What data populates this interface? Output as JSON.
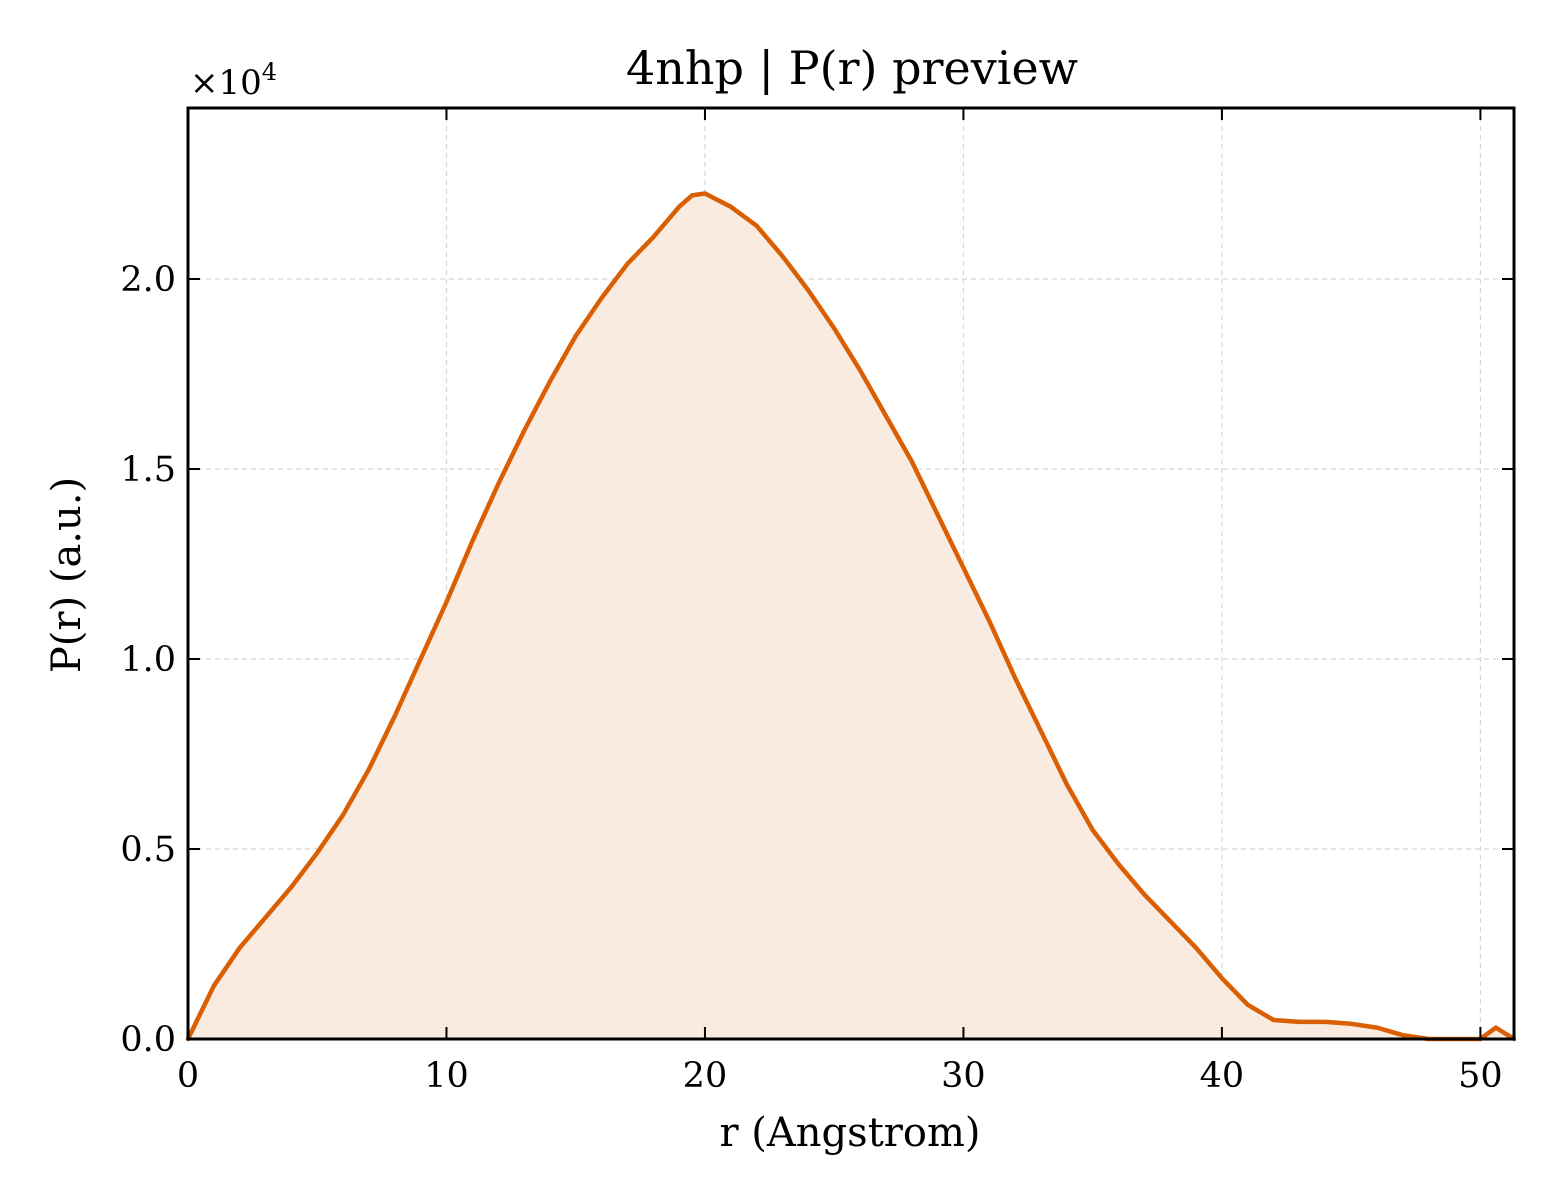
{
  "chart_data": {
    "type": "area",
    "title": "4nhp | P(r) preview",
    "xlabel": "r (Angstrom)",
    "ylabel": "P(r) (a.u.)",
    "y_multiplier_base": "×10",
    "y_multiplier_exp": "4",
    "xlim": [
      0,
      51.3
    ],
    "ylim": [
      0,
      24500
    ],
    "x_ticks": [
      0,
      10,
      20,
      30,
      40,
      50
    ],
    "y_ticks": [
      0,
      5000,
      10000,
      15000,
      20000
    ],
    "x_tick_labels": [
      "0",
      "10",
      "20",
      "30",
      "40",
      "50"
    ],
    "y_tick_labels": [
      "0.0",
      "0.5",
      "1.0",
      "1.5",
      "2.0"
    ],
    "grid": true,
    "line_color": "#d95f02",
    "fill_color": "#f9ebe0",
    "series": [
      {
        "x": [
          0,
          1,
          2,
          3,
          4,
          5,
          6,
          7,
          8,
          9,
          10,
          11,
          12,
          13,
          14,
          15,
          16,
          17,
          18,
          19,
          19.5,
          20,
          21,
          22,
          23,
          24,
          25,
          26,
          27,
          28,
          29,
          30,
          31,
          32,
          33,
          34,
          35,
          36,
          37,
          38,
          39,
          40,
          41,
          42,
          43,
          44,
          45,
          46,
          47,
          48,
          49,
          50,
          50.6,
          51.3
        ],
        "y": [
          0,
          1400,
          2400,
          3200,
          4000,
          4900,
          5900,
          7100,
          8500,
          10000,
          11500,
          13100,
          14600,
          16000,
          17300,
          18500,
          19500,
          20400,
          21100,
          21900,
          22200,
          22250,
          21900,
          21400,
          20600,
          19700,
          18700,
          17600,
          16400,
          15200,
          13800,
          12400,
          11000,
          9500,
          8100,
          6700,
          5500,
          4600,
          3800,
          3100,
          2400,
          1600,
          900,
          500,
          450,
          450,
          400,
          300,
          100,
          0,
          0,
          0,
          300,
          0
        ]
      }
    ]
  }
}
